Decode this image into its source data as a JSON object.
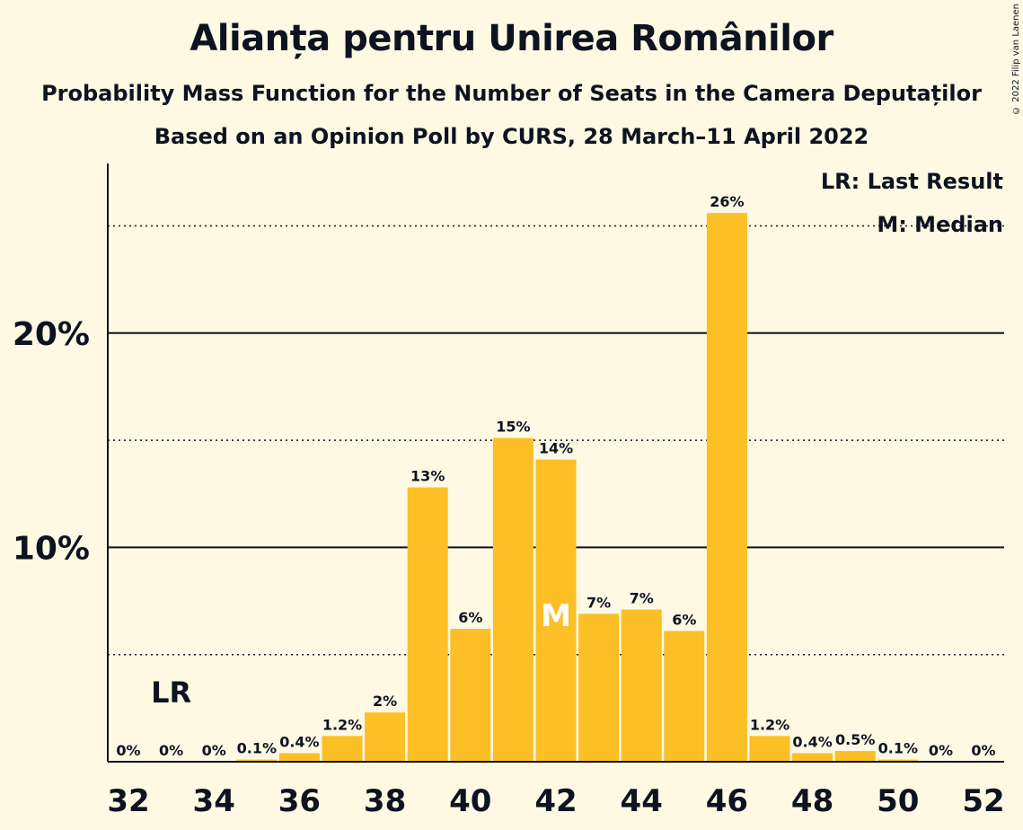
{
  "title": "Alianța pentru Unirea Românilor",
  "subtitle1": "Probability Mass Function for the Number of Seats in the Camera Deputaților",
  "subtitle2": "Based on an Opinion Poll by CURS, 28 March–11 April 2022",
  "copyright": "© 2022 Filip van Laenen",
  "legend": {
    "last_result": "LR: Last Result",
    "median": "M: Median"
  },
  "colors": {
    "bar": "#fcbf26",
    "background": "#fdf9e2",
    "text": "#0d1321"
  },
  "chart_data": {
    "type": "bar",
    "categories": [
      32,
      33,
      34,
      35,
      36,
      37,
      38,
      39,
      40,
      41,
      42,
      43,
      44,
      45,
      46,
      47,
      48,
      49,
      50,
      51,
      52
    ],
    "values": [
      0,
      0,
      0,
      0.1,
      0.4,
      1.2,
      2.3,
      12.8,
      6.2,
      15.1,
      14.1,
      6.9,
      7.1,
      6.1,
      25.6,
      1.2,
      0.4,
      0.5,
      0.1,
      0,
      0
    ],
    "data_labels": [
      "0%",
      "0%",
      "0%",
      "0.1%",
      "0.4%",
      "1.2%",
      "2%",
      "13%",
      "6%",
      "15%",
      "14%",
      "7%",
      "7%",
      "6%",
      "26%",
      "1.2%",
      "0.4%",
      "0.5%",
      "0.1%",
      "0%",
      "0%"
    ],
    "x_tick_labels": [
      "32",
      "34",
      "36",
      "38",
      "40",
      "42",
      "44",
      "46",
      "48",
      "50",
      "52"
    ],
    "y_tick_labels": [
      {
        "value": 10,
        "label": "10%"
      },
      {
        "value": 20,
        "label": "20%"
      }
    ],
    "dotted_gridlines": [
      5,
      15,
      25
    ],
    "solid_gridlines": [
      10,
      20
    ],
    "ylim": [
      0,
      27.5
    ],
    "last_result_seat": 33,
    "last_result_label": "LR",
    "median_seat": 42,
    "median_label": "M",
    "xlabel": "",
    "ylabel": ""
  }
}
